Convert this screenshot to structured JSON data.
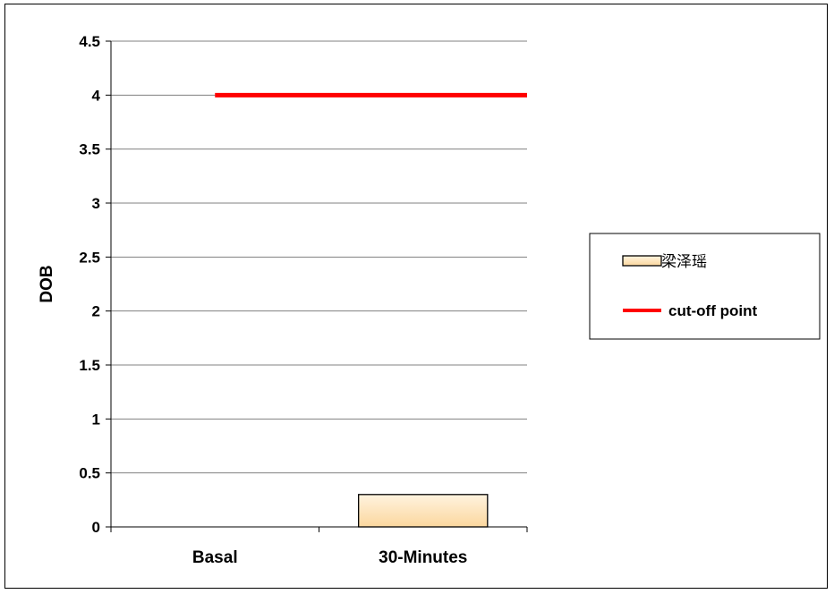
{
  "chart_data": {
    "type": "bar",
    "title": "",
    "xlabel": "",
    "ylabel": "DOB",
    "ylim": [
      0,
      4.5
    ],
    "yticks": [
      "0",
      "0.5",
      "1",
      "1.5",
      "2",
      "2.5",
      "3",
      "3.5",
      "4",
      "4.5"
    ],
    "grid": true,
    "categories": [
      "Basal",
      "30-Minutes"
    ],
    "series": [
      {
        "name": "梁泽瑶",
        "type": "bar",
        "values": [
          null,
          0.3
        ],
        "color": "#fde4b8"
      },
      {
        "name": "cut-off point",
        "type": "line",
        "values": [
          4,
          4
        ],
        "color": "#ff0000"
      }
    ],
    "legend_position": "right"
  }
}
